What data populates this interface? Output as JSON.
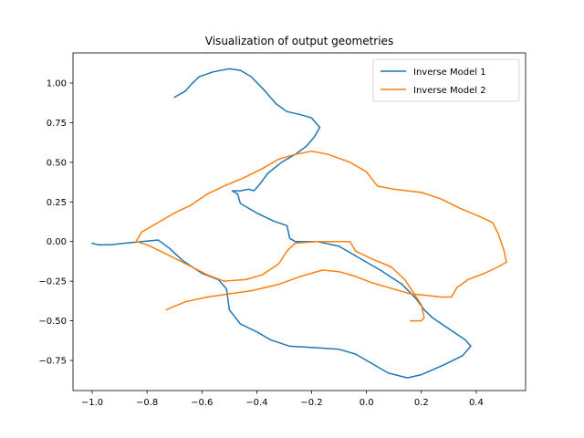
{
  "chart_data": {
    "type": "line",
    "title": "Visualization of output geometries",
    "xlabel": "",
    "ylabel": "",
    "xlim": [
      -1.07,
      0.58
    ],
    "ylim": [
      -0.94,
      1.19
    ],
    "xticks": [
      -1.0,
      -0.8,
      -0.6,
      -0.4,
      -0.2,
      0.0,
      0.2,
      0.4
    ],
    "xtick_labels": [
      "−1.0",
      "−0.8",
      "−0.6",
      "−0.4",
      "−0.2",
      "0.0",
      "0.2",
      "0.4"
    ],
    "yticks": [
      -0.75,
      -0.5,
      -0.25,
      0.0,
      0.25,
      0.5,
      0.75,
      1.0
    ],
    "ytick_labels": [
      "−0.75",
      "−0.50",
      "−0.25",
      "0.00",
      "0.25",
      "0.50",
      "0.75",
      "1.00"
    ],
    "grid": false,
    "legend_position": "top-right",
    "series": [
      {
        "name": "Inverse Model 1",
        "color": "#1f77b4",
        "points": [
          [
            -0.7,
            0.91
          ],
          [
            -0.66,
            0.95
          ],
          [
            -0.64,
            0.99
          ],
          [
            -0.61,
            1.04
          ],
          [
            -0.56,
            1.07
          ],
          [
            -0.5,
            1.09
          ],
          [
            -0.46,
            1.08
          ],
          [
            -0.42,
            1.04
          ],
          [
            -0.37,
            0.95
          ],
          [
            -0.33,
            0.87
          ],
          [
            -0.29,
            0.82
          ],
          [
            -0.24,
            0.8
          ],
          [
            -0.2,
            0.78
          ],
          [
            -0.17,
            0.72
          ],
          [
            -0.19,
            0.66
          ],
          [
            -0.22,
            0.6
          ],
          [
            -0.26,
            0.55
          ],
          [
            -0.31,
            0.5
          ],
          [
            -0.36,
            0.43
          ],
          [
            -0.39,
            0.36
          ],
          [
            -0.41,
            0.32
          ],
          [
            -0.43,
            0.33
          ],
          [
            -0.46,
            0.32
          ],
          [
            -0.49,
            0.32
          ],
          [
            -0.47,
            0.3
          ],
          [
            -0.46,
            0.24
          ],
          [
            -0.4,
            0.18
          ],
          [
            -0.34,
            0.13
          ],
          [
            -0.29,
            0.1
          ],
          [
            -0.28,
            0.02
          ],
          [
            -0.26,
            0.0
          ],
          [
            -0.18,
            0.0
          ],
          [
            -0.1,
            -0.03
          ],
          [
            -0.03,
            -0.1
          ],
          [
            0.05,
            -0.18
          ],
          [
            0.13,
            -0.27
          ],
          [
            0.18,
            -0.36
          ],
          [
            0.21,
            -0.43
          ],
          [
            0.24,
            -0.48
          ],
          [
            0.3,
            -0.55
          ],
          [
            0.36,
            -0.62
          ],
          [
            0.38,
            -0.66
          ],
          [
            0.35,
            -0.72
          ],
          [
            0.28,
            -0.78
          ],
          [
            0.2,
            -0.84
          ],
          [
            0.15,
            -0.86
          ],
          [
            0.08,
            -0.83
          ],
          [
            0.02,
            -0.77
          ],
          [
            -0.04,
            -0.71
          ],
          [
            -0.1,
            -0.68
          ],
          [
            -0.18,
            -0.67
          ],
          [
            -0.28,
            -0.66
          ],
          [
            -0.35,
            -0.62
          ],
          [
            -0.4,
            -0.57
          ],
          [
            -0.46,
            -0.52
          ],
          [
            -0.5,
            -0.43
          ],
          [
            -0.51,
            -0.3
          ],
          [
            -0.54,
            -0.24
          ],
          [
            -0.6,
            -0.2
          ],
          [
            -0.67,
            -0.12
          ],
          [
            -0.72,
            -0.04
          ],
          [
            -0.76,
            0.01
          ],
          [
            -0.82,
            0.0
          ],
          [
            -0.88,
            -0.01
          ],
          [
            -0.93,
            -0.02
          ],
          [
            -0.98,
            -0.02
          ],
          [
            -1.0,
            -0.01
          ]
        ]
      },
      {
        "name": "Inverse Model 2",
        "color": "#ff7f0e",
        "points": [
          [
            -0.73,
            -0.43
          ],
          [
            -0.66,
            -0.38
          ],
          [
            -0.58,
            -0.35
          ],
          [
            -0.5,
            -0.33
          ],
          [
            -0.42,
            -0.31
          ],
          [
            -0.32,
            -0.27
          ],
          [
            -0.24,
            -0.22
          ],
          [
            -0.16,
            -0.18
          ],
          [
            -0.1,
            -0.19
          ],
          [
            -0.04,
            -0.22
          ],
          [
            0.02,
            -0.26
          ],
          [
            0.1,
            -0.3
          ],
          [
            0.16,
            -0.33
          ],
          [
            0.22,
            -0.34
          ],
          [
            0.27,
            -0.35
          ],
          [
            0.31,
            -0.35
          ],
          [
            0.33,
            -0.29
          ],
          [
            0.37,
            -0.24
          ],
          [
            0.43,
            -0.2
          ],
          [
            0.48,
            -0.16
          ],
          [
            0.51,
            -0.13
          ],
          [
            0.5,
            -0.05
          ],
          [
            0.48,
            0.05
          ],
          [
            0.46,
            0.12
          ],
          [
            0.41,
            0.16
          ],
          [
            0.34,
            0.21
          ],
          [
            0.27,
            0.27
          ],
          [
            0.2,
            0.31
          ],
          [
            0.1,
            0.33
          ],
          [
            0.04,
            0.35
          ],
          [
            0.0,
            0.44
          ],
          [
            -0.06,
            0.5
          ],
          [
            -0.14,
            0.55
          ],
          [
            -0.2,
            0.57
          ],
          [
            -0.26,
            0.55
          ],
          [
            -0.32,
            0.52
          ],
          [
            -0.38,
            0.46
          ],
          [
            -0.45,
            0.4
          ],
          [
            -0.52,
            0.35
          ],
          [
            -0.58,
            0.3
          ],
          [
            -0.64,
            0.23
          ],
          [
            -0.7,
            0.18
          ],
          [
            -0.76,
            0.12
          ],
          [
            -0.82,
            0.06
          ],
          [
            -0.84,
            0.0
          ],
          [
            -0.8,
            -0.02
          ],
          [
            -0.74,
            -0.07
          ],
          [
            -0.66,
            -0.14
          ],
          [
            -0.58,
            -0.21
          ],
          [
            -0.52,
            -0.25
          ],
          [
            -0.44,
            -0.24
          ],
          [
            -0.38,
            -0.21
          ],
          [
            -0.32,
            -0.14
          ],
          [
            -0.29,
            -0.06
          ],
          [
            -0.26,
            -0.01
          ],
          [
            -0.18,
            0.0
          ],
          [
            -0.06,
            0.0
          ],
          [
            -0.04,
            -0.06
          ],
          [
            0.02,
            -0.11
          ],
          [
            0.09,
            -0.16
          ],
          [
            0.14,
            -0.24
          ],
          [
            0.17,
            -0.32
          ],
          [
            0.2,
            -0.4
          ],
          [
            0.21,
            -0.48
          ],
          [
            0.2,
            -0.5
          ],
          [
            0.16,
            -0.5
          ]
        ]
      }
    ]
  }
}
